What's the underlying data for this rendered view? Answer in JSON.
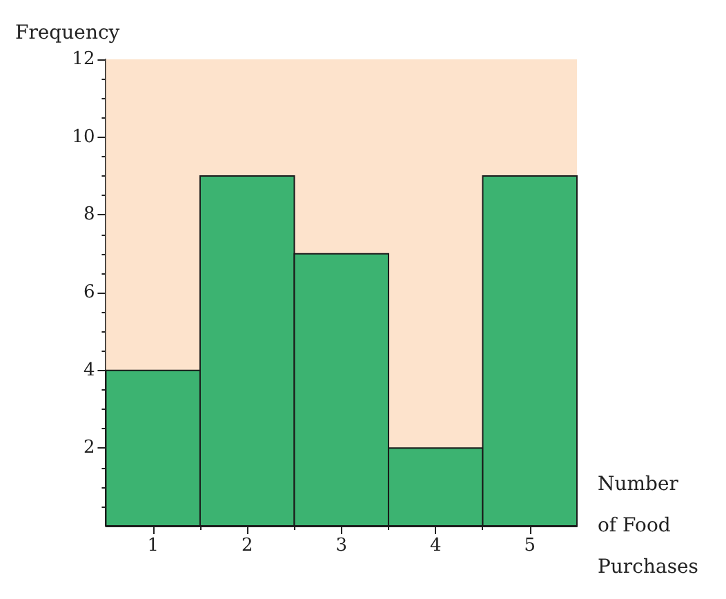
{
  "chart_data": {
    "type": "histogram",
    "xlabel": "Number of Food Purchases",
    "ylabel": "Frequency",
    "bins": [
      0.5,
      1.5,
      2.5,
      3.5,
      4.5,
      5.5
    ],
    "values": [
      4,
      9,
      7,
      2,
      9
    ],
    "color": "#3cb371",
    "xlim": [
      0.5,
      5.5
    ],
    "ylim": [
      0,
      12
    ],
    "xticks": [
      1,
      2,
      3,
      4,
      5
    ],
    "yticks": [
      2,
      4,
      6,
      8,
      10,
      12
    ],
    "bands": [
      {
        "axis": "x",
        "from": 0.5,
        "to": 5.5,
        "color": "#fde3cc"
      }
    ]
  }
}
